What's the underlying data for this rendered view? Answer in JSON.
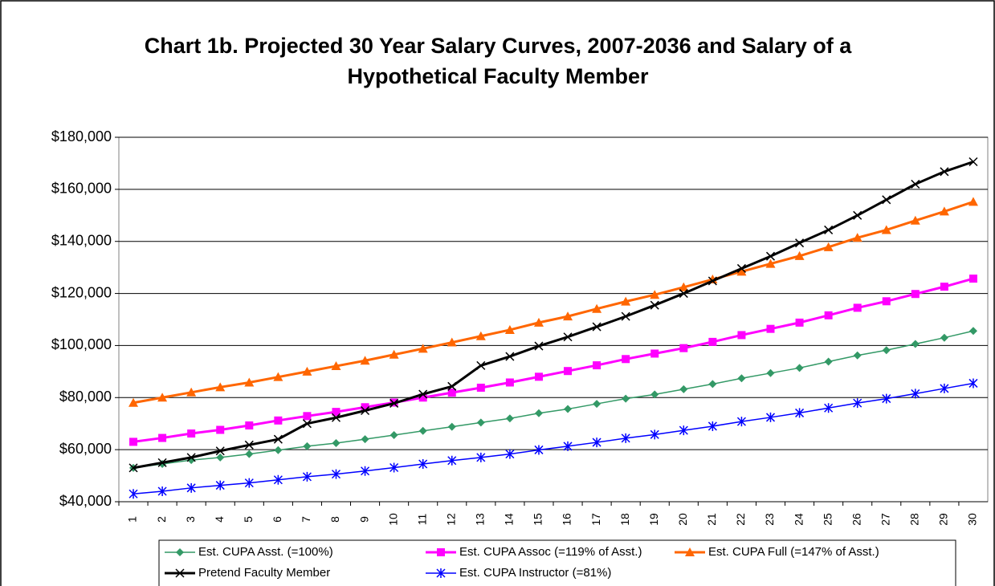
{
  "chart_data": {
    "type": "line",
    "title": "Chart 1b. Projected 30 Year Salary Curves, 2007-2036 and Salary of a Hypothetical Faculty Member",
    "categories": [
      "1",
      "2",
      "3",
      "4",
      "5",
      "6",
      "7",
      "8",
      "9",
      "10",
      "11",
      "12",
      "13",
      "14",
      "15",
      "16",
      "17",
      "18",
      "19",
      "20",
      "21",
      "22",
      "23",
      "24",
      "25",
      "26",
      "27",
      "28",
      "29",
      "30"
    ],
    "ylim": [
      40000,
      180000
    ],
    "yticks": [
      {
        "value": 40000,
        "label": "$40,000"
      },
      {
        "value": 60000,
        "label": "$60,000"
      },
      {
        "value": 80000,
        "label": "$80,000"
      },
      {
        "value": 100000,
        "label": "$100,000"
      },
      {
        "value": 120000,
        "label": "$120,000"
      },
      {
        "value": 140000,
        "label": "$140,000"
      },
      {
        "value": 160000,
        "label": "$160,000"
      },
      {
        "value": 180000,
        "label": "$180,000"
      }
    ],
    "grid": true,
    "legend": "bottom",
    "series": [
      {
        "name": "Est. CUPA Asst. (=100%)",
        "color": "#339966",
        "marker": "diamond",
        "values": [
          53000,
          54500,
          56000,
          57000,
          58300,
          59800,
          61300,
          62500,
          64000,
          65600,
          67200,
          68800,
          70400,
          72000,
          74000,
          75600,
          77600,
          79600,
          81200,
          83200,
          85200,
          87400,
          89400,
          91400,
          93800,
          96200,
          98200,
          100600,
          103000,
          105600
        ]
      },
      {
        "name": "Est. CUPA Assoc (=119% of Asst.)",
        "color": "#ff00ff",
        "marker": "square",
        "values": [
          63000,
          64500,
          66200,
          67600,
          69300,
          71200,
          72900,
          74500,
          76300,
          78100,
          80000,
          81900,
          83800,
          85800,
          88000,
          90200,
          92400,
          94800,
          96900,
          99000,
          101400,
          104000,
          106400,
          108800,
          111600,
          114500,
          117000,
          119800,
          122600,
          125700
        ]
      },
      {
        "name": "Est. CUPA Full (=147% of Asst.)",
        "color": "#ff6600",
        "marker": "triangle",
        "values": [
          78000,
          80000,
          82000,
          84000,
          85800,
          87900,
          90000,
          92100,
          94200,
          96500,
          98800,
          101200,
          103600,
          106000,
          108800,
          111200,
          114100,
          116900,
          119500,
          122400,
          125400,
          128400,
          131400,
          134400,
          137800,
          141400,
          144400,
          148000,
          151500,
          155200
        ]
      },
      {
        "name": "Pretend Faculty Member",
        "color": "#000000",
        "marker": "x",
        "values": [
          53000,
          55000,
          57000,
          59500,
          61800,
          64000,
          70000,
          72300,
          75000,
          77800,
          81300,
          84300,
          92300,
          95800,
          99800,
          103300,
          107200,
          111200,
          115500,
          120000,
          124800,
          129600,
          134300,
          139400,
          144400,
          150000,
          156000,
          162000,
          166800,
          170600
        ]
      },
      {
        "name": "Est. CUPA Instructor (=81%)",
        "color": "#0000ff",
        "marker": "asterisk",
        "values": [
          43000,
          44000,
          45300,
          46300,
          47200,
          48400,
          49600,
          50600,
          51800,
          53100,
          54500,
          55800,
          57000,
          58300,
          59900,
          61300,
          62800,
          64400,
          65800,
          67400,
          69000,
          70800,
          72400,
          74100,
          76000,
          77900,
          79600,
          81500,
          83500,
          85500
        ]
      }
    ]
  }
}
